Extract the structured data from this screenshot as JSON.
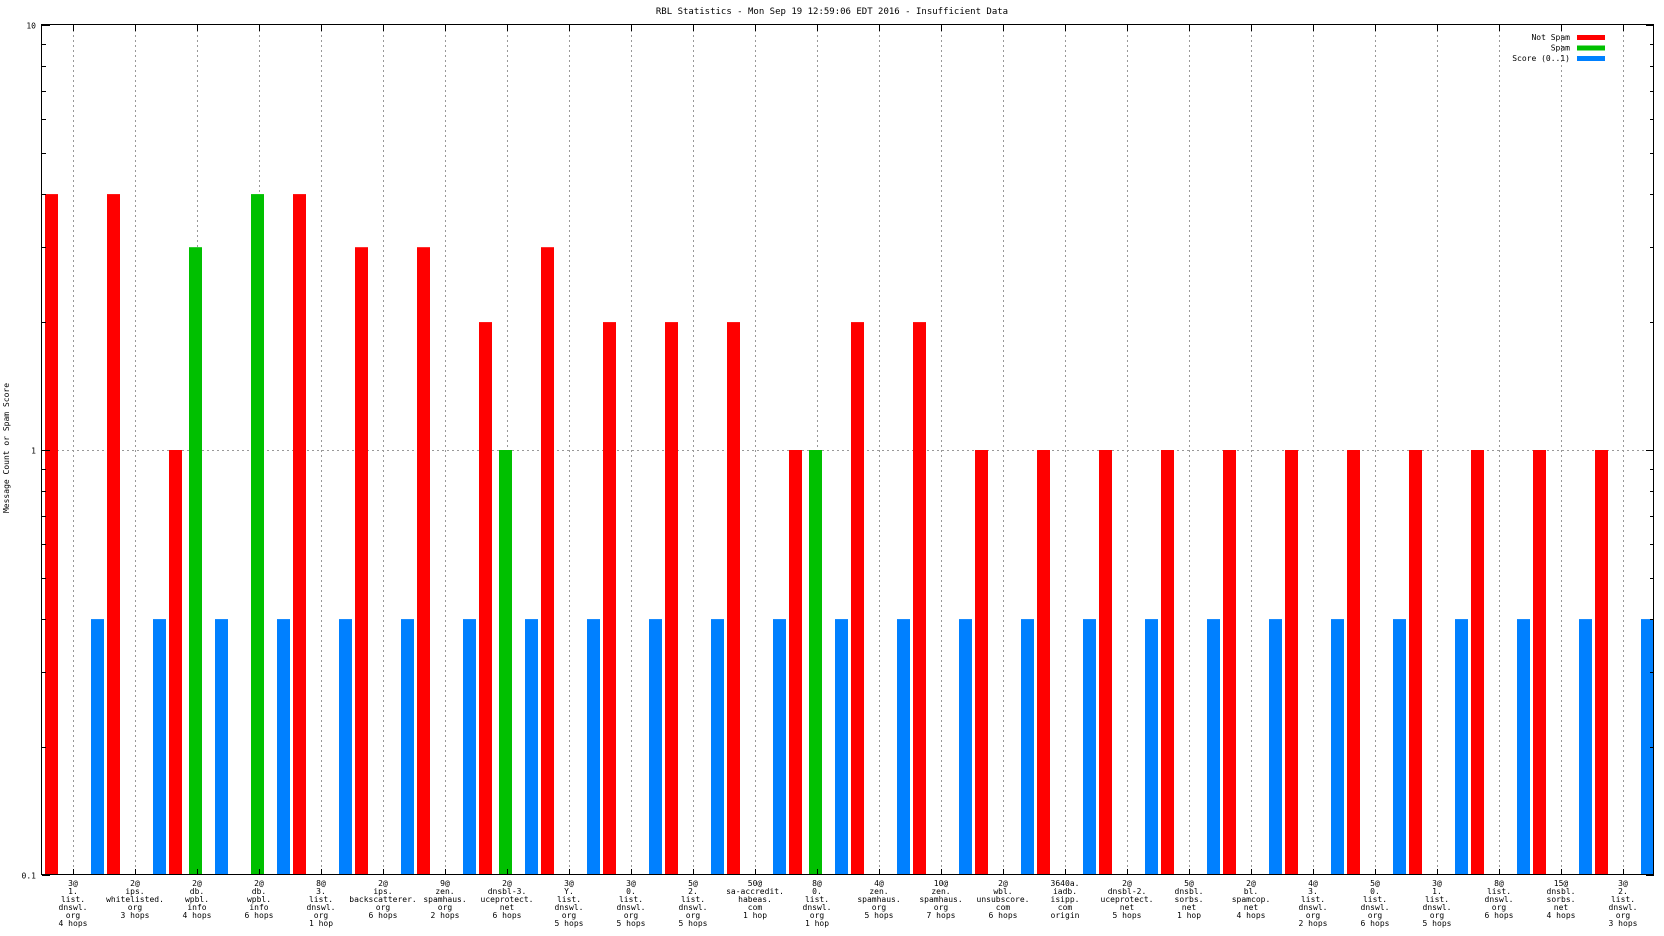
{
  "chart_data": {
    "type": "bar",
    "title": "RBL Statistics - Mon Sep 19 12:59:06 EDT 2016 - Insufficient Data",
    "xlabel": "",
    "ylabel": "Message Count or Spam Score",
    "yscale": "log",
    "ylim": [
      0.1,
      10
    ],
    "yticks": [
      {
        "value": 10,
        "label": "10"
      },
      {
        "value": 1,
        "label": "1"
      },
      {
        "value": 0.1,
        "label": "0.1"
      }
    ],
    "grid": true,
    "legend_position": "top-right",
    "categories": [
      [
        "3@",
        "1.",
        "list.",
        "dnswl.",
        "org",
        "4 hops"
      ],
      [
        "2@",
        "ips.",
        "whitelisted.",
        "org",
        "3 hops"
      ],
      [
        "2@",
        "db.",
        "wpbl.",
        "info",
        "4 hops"
      ],
      [
        "2@",
        "db.",
        "wpbl.",
        "info",
        "6 hops"
      ],
      [
        "8@",
        "3.",
        "list.",
        "dnswl.",
        "org",
        "1 hop"
      ],
      [
        "2@",
        "ips.",
        "backscatterer.",
        "org",
        "6 hops"
      ],
      [
        "9@",
        "zen.",
        "spamhaus.",
        "org",
        "2 hops"
      ],
      [
        "2@",
        "dnsbl-3.",
        "uceprotect.",
        "net",
        "6 hops"
      ],
      [
        "3@",
        "Y.",
        "list.",
        "dnswl.",
        "org",
        "5 hops"
      ],
      [
        "3@",
        "0.",
        "list.",
        "dnswl.",
        "org",
        "5 hops"
      ],
      [
        "5@",
        "2.",
        "list.",
        "dnswl.",
        "org",
        "5 hops"
      ],
      [
        "50@",
        "sa-accredit.",
        "habeas.",
        "com",
        "1 hop"
      ],
      [
        "8@",
        "0.",
        "list.",
        "dnswl.",
        "org",
        "1 hop"
      ],
      [
        "4@",
        "zen.",
        "spamhaus.",
        "org",
        "5 hops"
      ],
      [
        "10@",
        "zen.",
        "spamhaus.",
        "org",
        "7 hops"
      ],
      [
        "2@",
        "wbl.",
        "unsubscore.",
        "com",
        "6 hops"
      ],
      [
        "3640a.",
        "iadb.",
        "isipp.",
        "com",
        "origin"
      ],
      [
        "2@",
        "dnsbl-2.",
        "uceprotect.",
        "net",
        "5 hops"
      ],
      [
        "5@",
        "dnsbl.",
        "sorbs.",
        "net",
        "1 hop"
      ],
      [
        "2@",
        "bl.",
        "spamcop.",
        "net",
        "4 hops"
      ],
      [
        "4@",
        "3.",
        "list.",
        "dnswl.",
        "org",
        "2 hops"
      ],
      [
        "5@",
        "0.",
        "list.",
        "dnswl.",
        "org",
        "6 hops"
      ],
      [
        "3@",
        "1.",
        "list.",
        "dnswl.",
        "org",
        "5 hops"
      ],
      [
        "8@",
        "list.",
        "dnswl.",
        "org",
        "6 hops"
      ],
      [
        "15@",
        "dnsbl.",
        "sorbs.",
        "net",
        "4 hops"
      ],
      [
        "3@",
        "2.",
        "list.",
        "dnswl.",
        "org",
        "3 hops"
      ]
    ],
    "series": [
      {
        "name": "Not Spam",
        "color": "#ff0000",
        "values": [
          4,
          4,
          1,
          null,
          4,
          3,
          3,
          2,
          3,
          2,
          2,
          2,
          1,
          2,
          2,
          1,
          1,
          1,
          1,
          1,
          1,
          1,
          1,
          1,
          1,
          1
        ]
      },
      {
        "name": "Spam",
        "color": "#00c000",
        "values": [
          null,
          null,
          3,
          4,
          null,
          null,
          null,
          1,
          null,
          null,
          null,
          null,
          1,
          null,
          null,
          null,
          null,
          null,
          null,
          null,
          null,
          null,
          null,
          null,
          null,
          null
        ]
      },
      {
        "name": "Score (0..1)",
        "color": "#0080ff",
        "values": [
          0.4,
          0.4,
          0.4,
          0.4,
          0.4,
          0.4,
          0.4,
          0.4,
          0.4,
          0.4,
          0.4,
          0.4,
          0.4,
          0.4,
          0.4,
          0.4,
          0.4,
          0.4,
          0.4,
          0.4,
          0.4,
          0.4,
          0.4,
          0.4,
          0.4,
          0.4
        ]
      }
    ]
  }
}
